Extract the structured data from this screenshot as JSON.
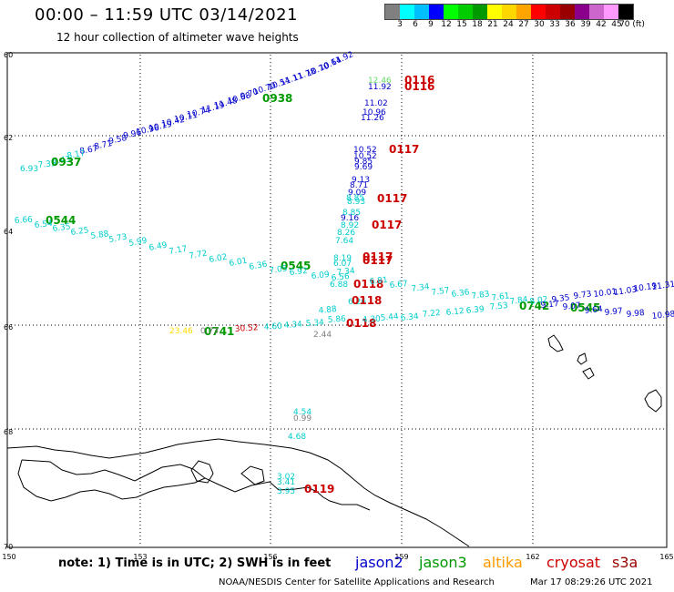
{
  "title": "00:00 – 11:59 UTC 03/14/2021",
  "subtitle": "12 hour collection of altimeter wave heights",
  "colorbar": {
    "colors": [
      "#808080",
      "#00ffff",
      "#00bfff",
      "#0000ff",
      "#00ff00",
      "#00cc00",
      "#009900",
      "#ffff00",
      "#ffd700",
      "#ffa500",
      "#ff0000",
      "#cc0000",
      "#990000",
      "#8b008b",
      "#cc66cc",
      "#ff99ff",
      "#000000"
    ],
    "labels": [
      "3",
      "6",
      "9",
      "12",
      "15",
      "18",
      "21",
      "24",
      "27",
      "30",
      "33",
      "36",
      "39",
      "42",
      "45",
      "70 (ft)"
    ]
  },
  "lat_labels": [
    "60",
    "62",
    "64",
    "66",
    "68",
    "70"
  ],
  "lon_labels": [
    "150",
    "153",
    "156",
    "159",
    "162",
    "165"
  ],
  "note": "note:  1) Time is in UTC;  2) SWH is in feet",
  "legend": [
    {
      "name": "jason2",
      "color": "#0000cc"
    },
    {
      "name": "jason3",
      "color": "#009900"
    },
    {
      "name": "altika",
      "color": "#ff9900"
    },
    {
      "name": "cryosat",
      "color": "#cc0000"
    },
    {
      "name": "s3a",
      "color": "#990000"
    }
  ],
  "credit": "NOAA/NESDIS Center for Satellite Applications and Research",
  "timestamp": "Mar 17 08:29:26 UTC 2021",
  "wave_labels": [
    {
      "t": "11.92",
      "c": "#0000cc"
    },
    {
      "t": "10.64",
      "c": "#0000cc"
    },
    {
      "t": "10.70",
      "c": "#0000cc"
    },
    {
      "t": "11.78",
      "c": "#0000cc"
    },
    {
      "t": "11.11",
      "c": "#0000cc"
    },
    {
      "t": "10.54",
      "c": "#0000cc"
    },
    {
      "t": "10.70",
      "c": "#0000cc"
    },
    {
      "t": "9.70",
      "c": "#0000cc"
    },
    {
      "t": "10.68",
      "c": "#0000cc"
    },
    {
      "t": "11.48",
      "c": "#0000cc"
    },
    {
      "t": "11.19",
      "c": "#0000cc"
    },
    {
      "t": "10.74",
      "c": "#0000cc"
    },
    {
      "t": "10.11",
      "c": "#0000cc"
    },
    {
      "t": "10.42",
      "c": "#0000cc"
    },
    {
      "t": "10.19",
      "c": "#0000cc"
    },
    {
      "t": "10.96",
      "c": "#0000cc"
    },
    {
      "t": "9.96",
      "c": "#0000cc"
    },
    {
      "t": "9.58",
      "c": "#0000cc"
    },
    {
      "t": "8.71",
      "c": "#0000cc"
    },
    {
      "t": "8.67",
      "c": "#0000cc"
    },
    {
      "t": "8.17",
      "c": "#00cccc"
    },
    {
      "t": "7.43",
      "c": "#00cccc"
    },
    {
      "t": "7.35",
      "c": "#00cccc"
    },
    {
      "t": "6.93",
      "c": "#00cccc"
    },
    {
      "t": "0938",
      "c": "#009900"
    },
    {
      "t": "0937",
      "c": "#009900"
    },
    {
      "t": "0544",
      "c": "#009900"
    },
    {
      "t": "0545",
      "c": "#009900"
    },
    {
      "t": "0742",
      "c": "#009900"
    },
    {
      "t": "0545",
      "c": "#009900"
    },
    {
      "t": "0741",
      "c": "#009900"
    },
    {
      "t": "12.46",
      "c": "#66dd66"
    },
    {
      "t": "11.92",
      "c": "#0000cc"
    },
    {
      "t": "0116",
      "c": "#cc0000"
    },
    {
      "t": "0116",
      "c": "#cc0000"
    },
    {
      "t": "11.02",
      "c": "#0000cc"
    },
    {
      "t": "10.96",
      "c": "#0000cc"
    },
    {
      "t": "11.26",
      "c": "#0000cc"
    },
    {
      "t": "10.52",
      "c": "#0000cc"
    },
    {
      "t": "10.52",
      "c": "#0000cc"
    },
    {
      "t": "9.85",
      "c": "#0000cc"
    },
    {
      "t": "9.69",
      "c": "#0000cc"
    },
    {
      "t": "0117",
      "c": "#cc0000"
    },
    {
      "t": "9.13",
      "c": "#0000cc"
    },
    {
      "t": "8.71",
      "c": "#0000cc"
    },
    {
      "t": "9.09",
      "c": "#0000cc"
    },
    {
      "t": "8.85",
      "c": "#00cccc"
    },
    {
      "t": "8.93",
      "c": "#00cccc"
    },
    {
      "t": "0117",
      "c": "#cc0000"
    },
    {
      "t": "8.85",
      "c": "#00cccc"
    },
    {
      "t": "9.16",
      "c": "#0000cc"
    },
    {
      "t": "8.92",
      "c": "#00cccc"
    },
    {
      "t": "8.26",
      "c": "#00cccc"
    },
    {
      "t": "7.64",
      "c": "#00cccc"
    },
    {
      "t": "0117",
      "c": "#cc0000"
    },
    {
      "t": "6.66",
      "c": "#00cccc"
    },
    {
      "t": "6.54",
      "c": "#00cccc"
    },
    {
      "t": "6.35",
      "c": "#00cccc"
    },
    {
      "t": "6.25",
      "c": "#00cccc"
    },
    {
      "t": "5.88",
      "c": "#00cccc"
    },
    {
      "t": "5.73",
      "c": "#00cccc"
    },
    {
      "t": "5.99",
      "c": "#00cccc"
    },
    {
      "t": "6.49",
      "c": "#00cccc"
    },
    {
      "t": "7.17",
      "c": "#00cccc"
    },
    {
      "t": "7.72",
      "c": "#00cccc"
    },
    {
      "t": "6.02",
      "c": "#00cccc"
    },
    {
      "t": "6.01",
      "c": "#00cccc"
    },
    {
      "t": "6.36",
      "c": "#00cccc"
    },
    {
      "t": "7.05",
      "c": "#00cccc"
    },
    {
      "t": "6.92",
      "c": "#00cccc"
    },
    {
      "t": "8.19",
      "c": "#00cccc"
    },
    {
      "t": "6.07",
      "c": "#00cccc"
    },
    {
      "t": "0117",
      "c": "#cc0000"
    },
    {
      "t": "0117",
      "c": "#cc0000"
    },
    {
      "t": "7.34",
      "c": "#00cccc"
    },
    {
      "t": "6.09",
      "c": "#00cccc"
    },
    {
      "t": "6.56",
      "c": "#00cccc"
    },
    {
      "t": "6.88",
      "c": "#00cccc"
    },
    {
      "t": "0118",
      "c": "#cc0000"
    },
    {
      "t": "6.81",
      "c": "#00cccc"
    },
    {
      "t": "6.67",
      "c": "#00cccc"
    },
    {
      "t": "7.34",
      "c": "#00cccc"
    },
    {
      "t": "7.57",
      "c": "#00cccc"
    },
    {
      "t": "6.36",
      "c": "#00cccc"
    },
    {
      "t": "7.83",
      "c": "#00cccc"
    },
    {
      "t": "7.61",
      "c": "#00cccc"
    },
    {
      "t": "7.84",
      "c": "#00cccc"
    },
    {
      "t": "8.02",
      "c": "#00cccc"
    },
    {
      "t": "9.35",
      "c": "#0000cc"
    },
    {
      "t": "9.73",
      "c": "#0000cc"
    },
    {
      "t": "10.01",
      "c": "#0000cc"
    },
    {
      "t": "11.03",
      "c": "#0000cc"
    },
    {
      "t": "10.19",
      "c": "#0000cc"
    },
    {
      "t": "11.31",
      "c": "#0000cc"
    },
    {
      "t": "6.26",
      "c": "#00cccc"
    },
    {
      "t": "0118",
      "c": "#cc0000"
    },
    {
      "t": "6.39",
      "c": "#00cccc"
    },
    {
      "t": "7.53",
      "c": "#00cccc"
    },
    {
      "t": "6.12",
      "c": "#00cccc"
    },
    {
      "t": "9.17",
      "c": "#0000cc"
    },
    {
      "t": "9.07",
      "c": "#0000cc"
    },
    {
      "t": "9.64",
      "c": "#0000cc"
    },
    {
      "t": "9.97",
      "c": "#0000cc"
    },
    {
      "t": "9.98",
      "c": "#0000cc"
    },
    {
      "t": "10.98",
      "c": "#0000cc"
    },
    {
      "t": "4.88",
      "c": "#00cccc"
    },
    {
      "t": "5.44",
      "c": "#00cccc"
    },
    {
      "t": "6.34",
      "c": "#00cccc"
    },
    {
      "t": "7.22",
      "c": "#00cccc"
    },
    {
      "t": "0118",
      "c": "#cc0000"
    },
    {
      "t": "23.46",
      "c": "#ffdd00"
    },
    {
      "t": "0.73",
      "c": "#808080"
    },
    {
      "t": "30.52",
      "c": "#cc0000"
    },
    {
      "t": "4.60",
      "c": "#00cccc"
    },
    {
      "t": "4.34",
      "c": "#00cccc"
    },
    {
      "t": "5.34",
      "c": "#00cccc"
    },
    {
      "t": "5.86",
      "c": "#00cccc"
    },
    {
      "t": "4.30",
      "c": "#00cccc"
    },
    {
      "t": "2.44",
      "c": "#808080"
    },
    {
      "t": "4.54",
      "c": "#00cccc"
    },
    {
      "t": "0.99",
      "c": "#808080"
    },
    {
      "t": "4.68",
      "c": "#00cccc"
    },
    {
      "t": "3.02",
      "c": "#00cccc"
    },
    {
      "t": "3.41",
      "c": "#00cccc"
    },
    {
      "t": "3.95",
      "c": "#00cccc"
    },
    {
      "t": "0119",
      "c": "#cc0000"
    }
  ]
}
